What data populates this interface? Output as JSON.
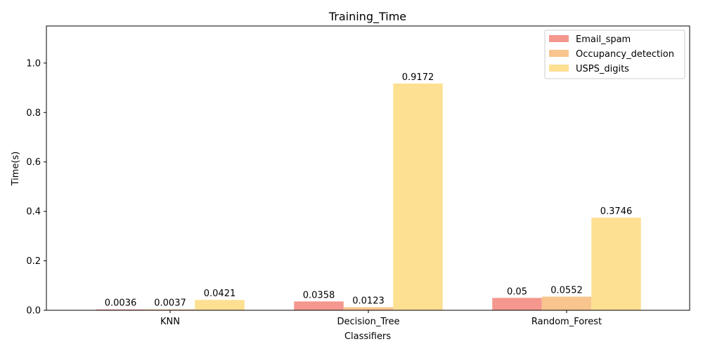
{
  "chart_data": {
    "type": "bar",
    "title": "Training_Time",
    "xlabel": "Classifiers",
    "ylabel": "Time(s)",
    "categories": [
      "KNN",
      "Decision_Tree",
      "Random_Forest"
    ],
    "series": [
      {
        "name": "Email_spam",
        "values": [
          0.0036,
          0.0358,
          0.05
        ],
        "labels": [
          "0.0036",
          "0.0358",
          "0.05"
        ],
        "color": "#f4978e"
      },
      {
        "name": "Occupancy_detection",
        "values": [
          0.0037,
          0.0123,
          0.0552
        ],
        "labels": [
          "0.0037",
          "0.0123",
          "0.0552"
        ],
        "color": "#f8c58e"
      },
      {
        "name": "USPS_digits",
        "values": [
          0.0421,
          0.9172,
          0.3746
        ],
        "labels": [
          "0.0421",
          "0.9172",
          "0.3746"
        ],
        "color": "#fde092"
      }
    ],
    "ylim": [
      0,
      1.15
    ],
    "yticks": [
      0.0,
      0.2,
      0.4,
      0.6,
      0.8,
      1.0
    ],
    "ytick_labels": [
      "0.0",
      "0.2",
      "0.4",
      "0.6",
      "0.8",
      "1.0"
    ],
    "grid": false,
    "legend": "top-right"
  }
}
